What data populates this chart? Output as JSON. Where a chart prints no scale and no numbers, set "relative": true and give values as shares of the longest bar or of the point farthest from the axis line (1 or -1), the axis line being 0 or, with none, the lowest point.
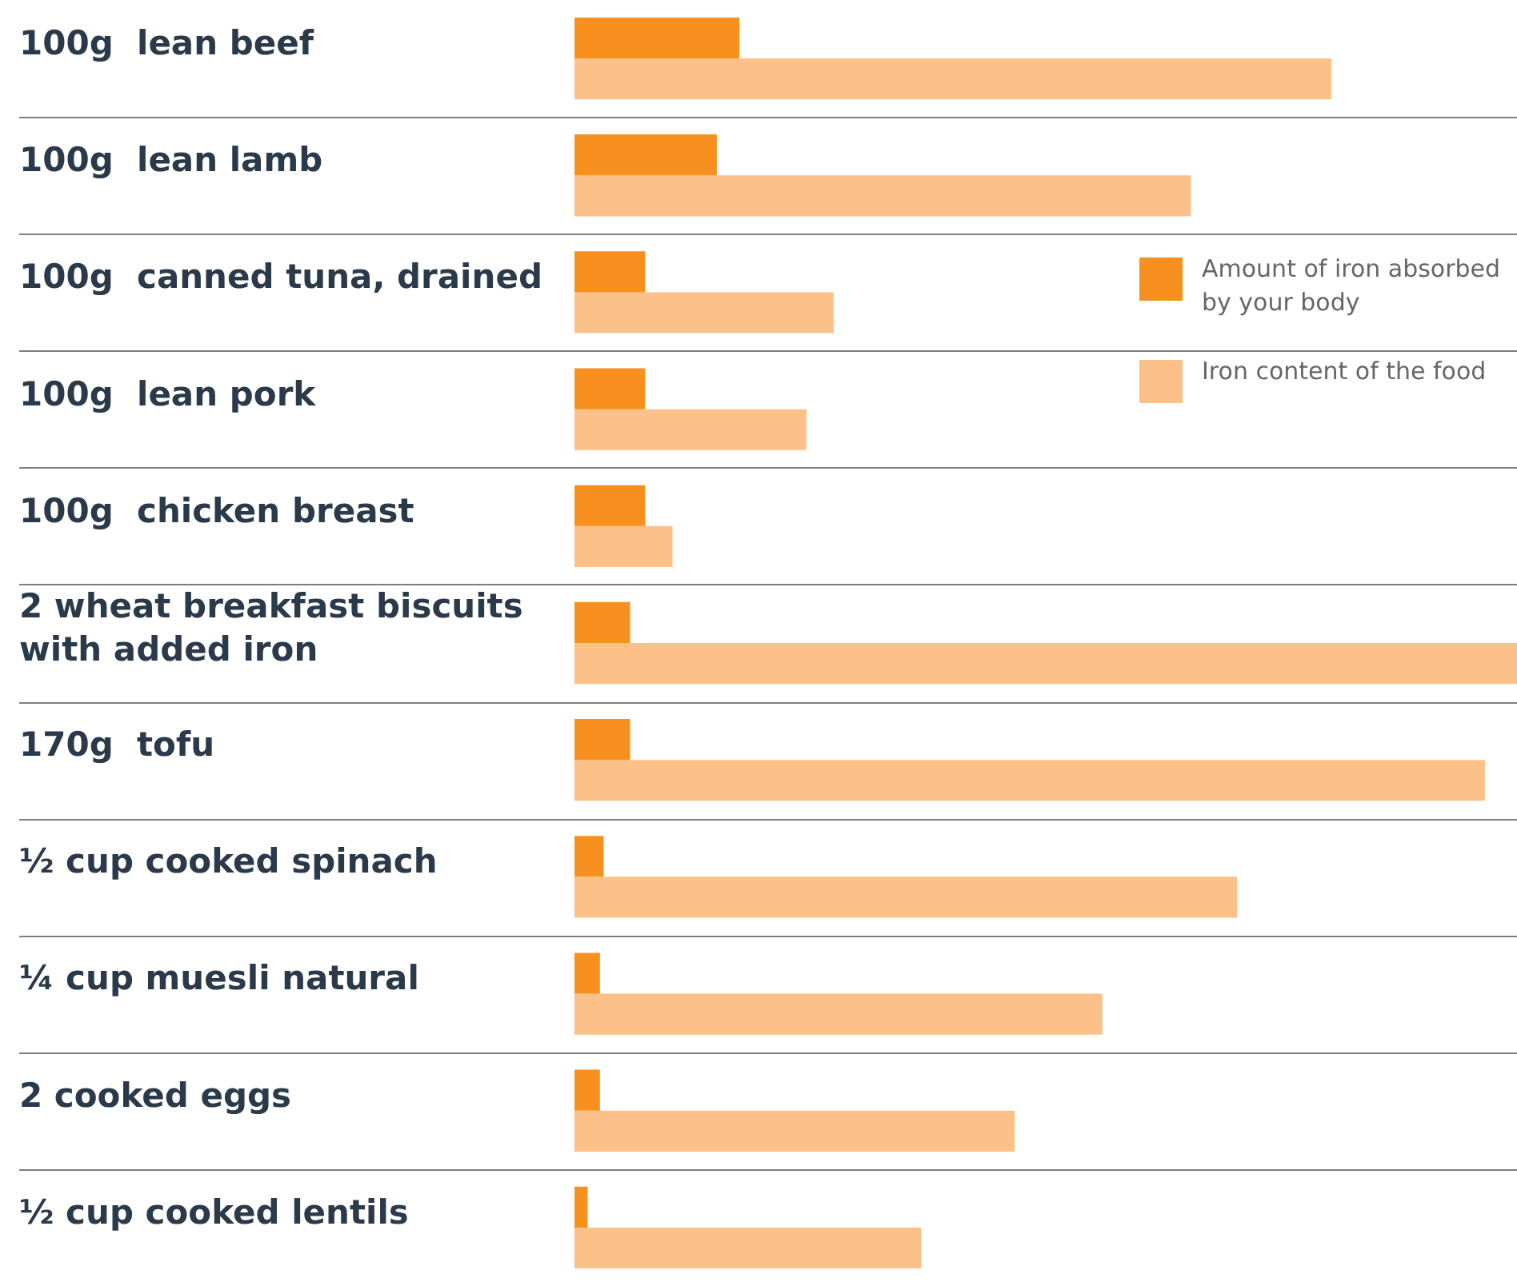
{
  "chart_data": {
    "type": "bar",
    "orientation": "horizontal",
    "relative": true,
    "grid": "y",
    "legend": "top right",
    "categories": [
      "100g  lean beef",
      "100g  lean lamb",
      "100g  canned tuna, drained",
      "100g  lean pork",
      "100g  chicken breast",
      "2 wheat breakfast biscuits with added iron",
      "170g  tofu",
      "½ cup cooked spinach",
      "¼ cup muesli natural",
      "2 cooked eggs",
      "½ cup cooked lentils"
    ],
    "series": [
      {
        "name": "Amount of iron absorbed by your body",
        "color": "#f7901e",
        "values": [
          0.175,
          0.151,
          0.075,
          0.075,
          0.075,
          0.059,
          0.059,
          0.031,
          0.027,
          0.027,
          0.014
        ]
      },
      {
        "name": "Iron content of the food",
        "color": "#fbc188",
        "values": [
          0.803,
          0.654,
          0.275,
          0.246,
          0.104,
          1,
          0.966,
          0.703,
          0.56,
          0.467,
          0.368
        ]
      }
    ]
  }
}
